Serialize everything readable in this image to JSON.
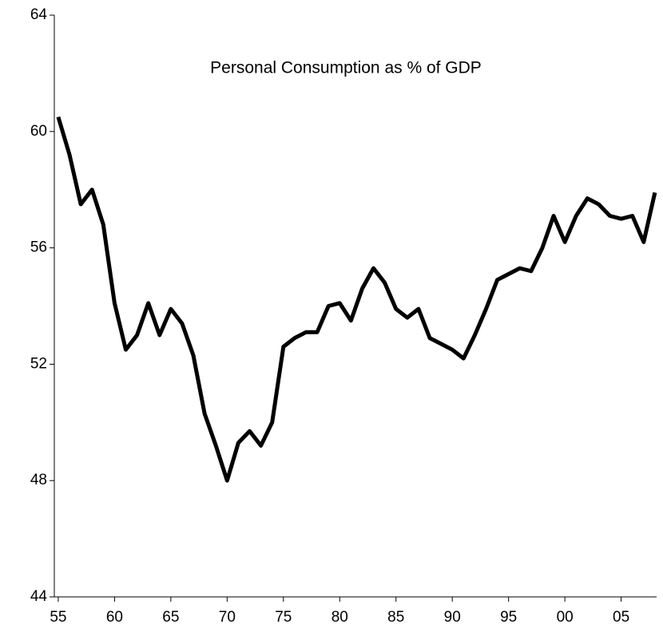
{
  "chart_data": {
    "type": "line",
    "title": "Personal Consumption as % of GDP",
    "x": [
      1955,
      1956,
      1957,
      1958,
      1959,
      1960,
      1961,
      1962,
      1963,
      1964,
      1965,
      1966,
      1967,
      1968,
      1969,
      1970,
      1971,
      1972,
      1973,
      1974,
      1975,
      1976,
      1977,
      1978,
      1979,
      1980,
      1981,
      1982,
      1983,
      1984,
      1985,
      1986,
      1987,
      1988,
      1989,
      1990,
      1991,
      1992,
      1993,
      1994,
      1995,
      1996,
      1997,
      1998,
      1999,
      2000,
      2001,
      2002,
      2003,
      2004,
      2005,
      2006,
      2007,
      2008
    ],
    "series": [
      {
        "name": "Personal Consumption",
        "color": "#000000",
        "values": [
          60.5,
          59.2,
          57.5,
          58.0,
          56.8,
          54.1,
          52.5,
          53.0,
          54.1,
          53.0,
          53.9,
          53.4,
          52.3,
          50.3,
          49.2,
          48.0,
          49.3,
          49.7,
          49.2,
          50.0,
          52.6,
          52.9,
          53.1,
          53.1,
          54.0,
          54.1,
          53.5,
          54.6,
          55.3,
          54.8,
          53.9,
          53.6,
          53.9,
          52.9,
          52.7,
          52.5,
          52.2,
          53.0,
          53.9,
          54.9,
          55.1,
          55.3,
          55.2,
          56.0,
          57.1,
          56.2,
          57.1,
          57.7,
          57.5,
          57.1,
          57.0,
          57.1,
          56.2,
          57.9
        ]
      }
    ],
    "xlim": [
      1954.65,
      2008.15
    ],
    "xticks": [
      {
        "value": 1955,
        "label": "55"
      },
      {
        "value": 1960,
        "label": "60"
      },
      {
        "value": 1965,
        "label": "65"
      },
      {
        "value": 1970,
        "label": "70"
      },
      {
        "value": 1975,
        "label": "75"
      },
      {
        "value": 1980,
        "label": "80"
      },
      {
        "value": 1985,
        "label": "85"
      },
      {
        "value": 1990,
        "label": "90"
      },
      {
        "value": 1995,
        "label": "95"
      },
      {
        "value": 2000,
        "label": "00"
      },
      {
        "value": 2005,
        "label": "05"
      }
    ],
    "ylim": [
      44,
      64
    ],
    "yticks": [
      44,
      48,
      52,
      56,
      60,
      64
    ],
    "grid": false
  }
}
